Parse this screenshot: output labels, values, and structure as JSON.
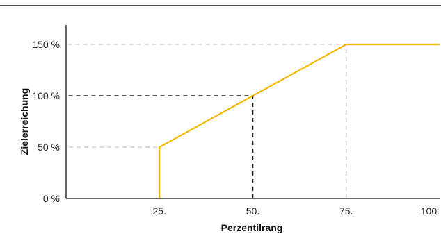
{
  "chart_data": {
    "type": "line",
    "xlabel": "Perzentilrang",
    "ylabel": "Zielerreichung",
    "xlim": [
      0,
      100
    ],
    "ylim": [
      0,
      150
    ],
    "x_ticks": [
      {
        "value": 25,
        "label": "25."
      },
      {
        "value": 50,
        "label": "50."
      },
      {
        "value": 75,
        "label": "75."
      },
      {
        "value": 100,
        "label": "100."
      }
    ],
    "y_ticks": [
      {
        "value": 0,
        "label": "0 %"
      },
      {
        "value": 50,
        "label": "50 %"
      },
      {
        "value": 100,
        "label": "100 %"
      },
      {
        "value": 150,
        "label": "150 %"
      }
    ],
    "series": [
      {
        "x": [
          25,
          25,
          50,
          75,
          100
        ],
        "y": [
          0,
          50,
          100,
          150,
          150
        ],
        "color": "#f5b800"
      }
    ],
    "reference_lines": [
      {
        "points": [
          [
            25,
            0
          ],
          [
            25,
            50
          ],
          [
            0,
            50
          ]
        ],
        "color": "#d0d0d0"
      },
      {
        "points": [
          [
            75,
            0
          ],
          [
            75,
            150
          ],
          [
            0,
            150
          ]
        ],
        "color": "#d0d0d0"
      },
      {
        "points": [
          [
            50,
            0
          ],
          [
            50,
            100
          ],
          [
            0,
            100
          ]
        ],
        "color": "#222222"
      }
    ],
    "grid": false,
    "legend": "none"
  }
}
